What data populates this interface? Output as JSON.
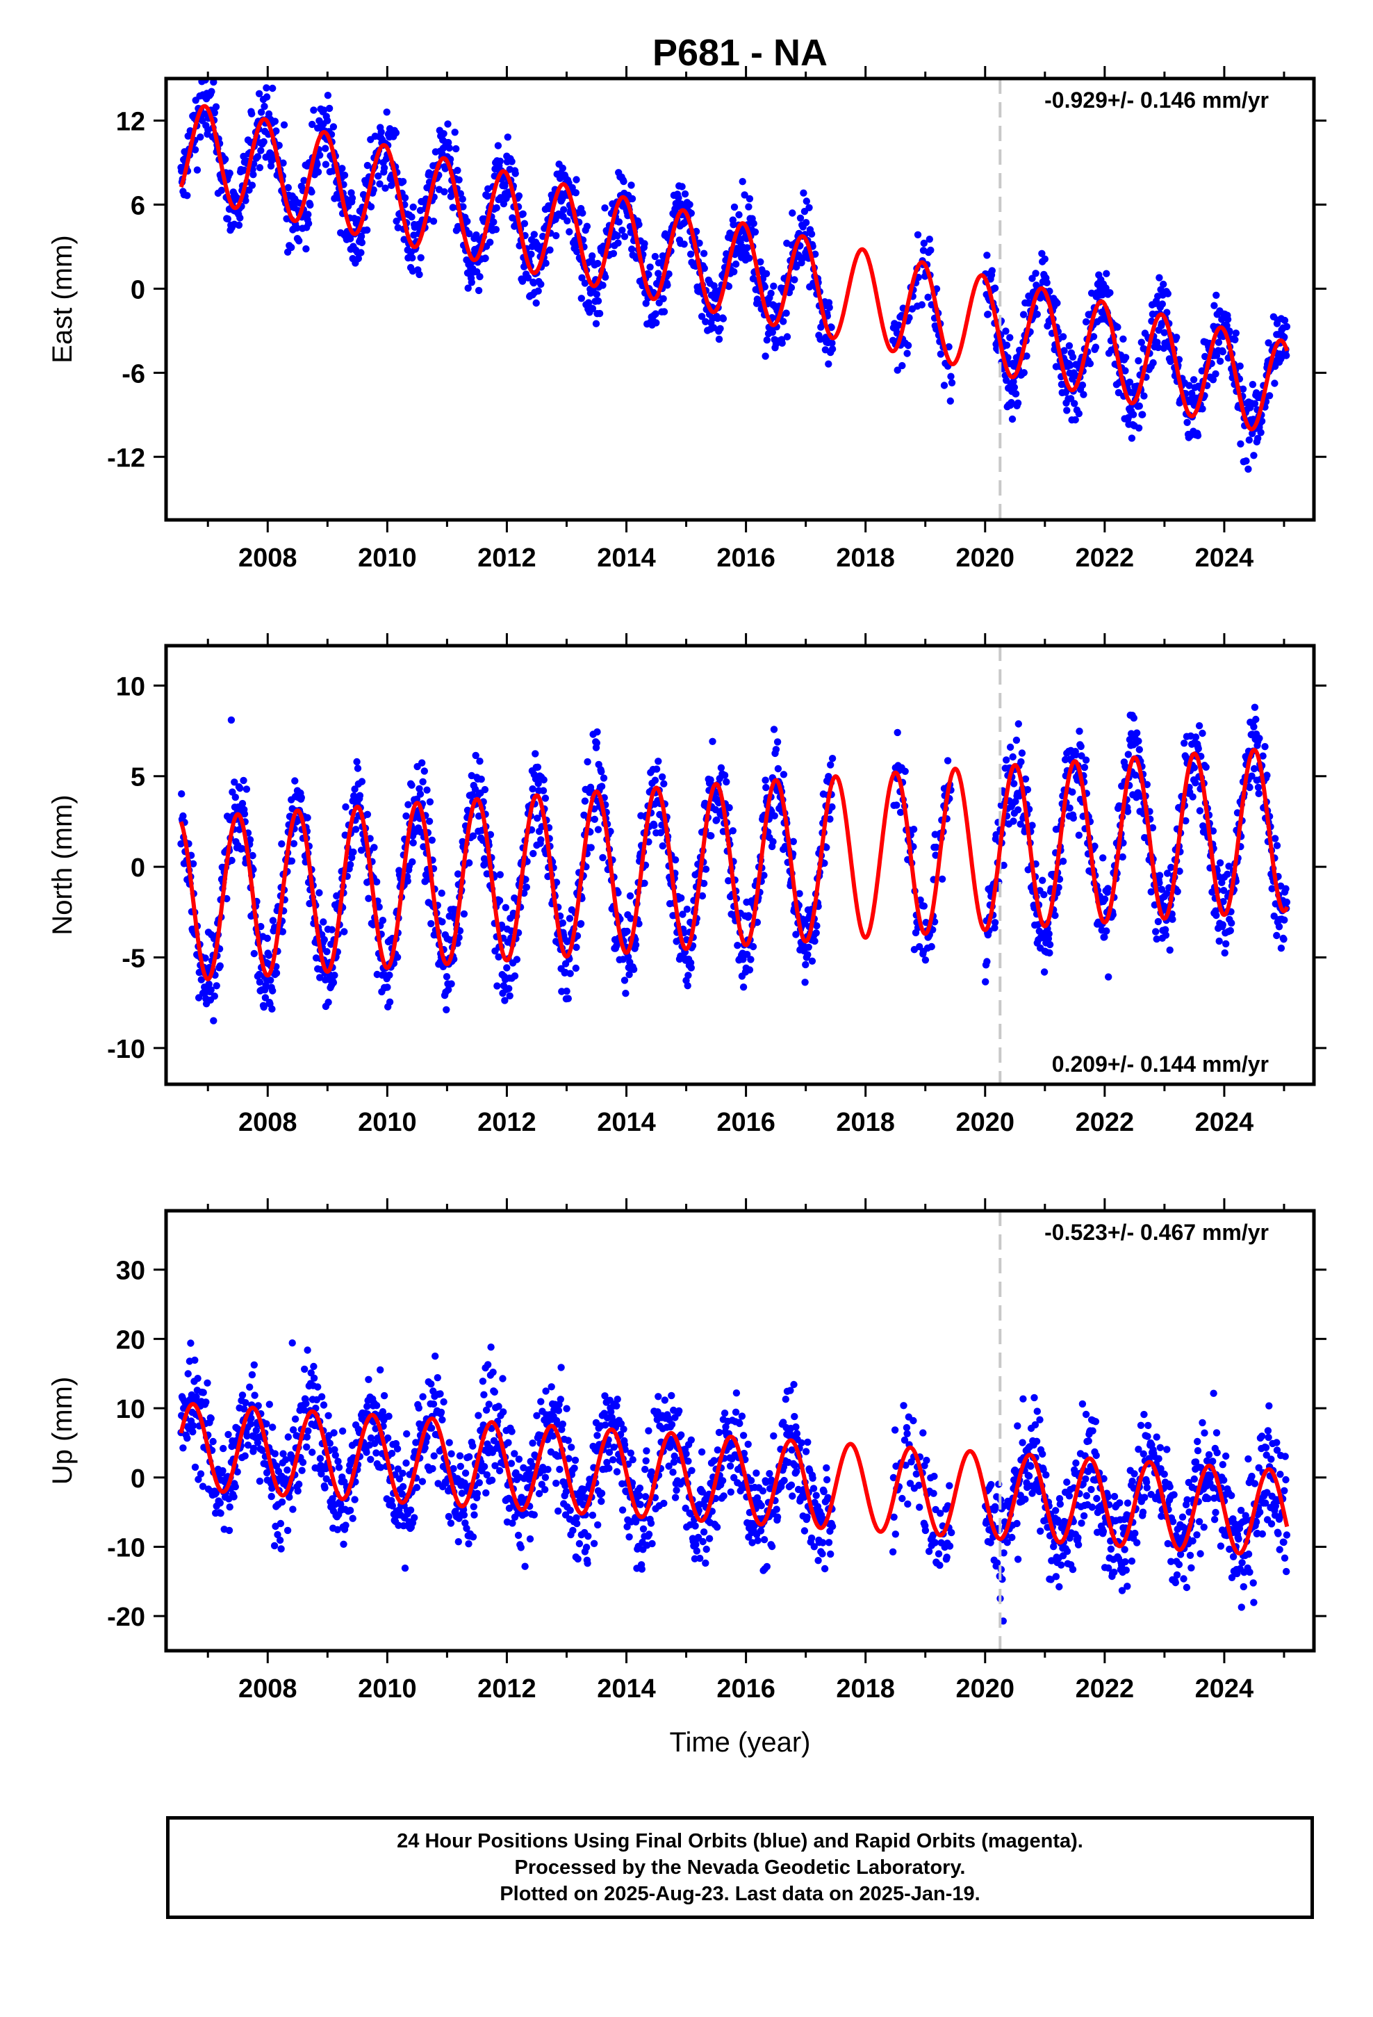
{
  "title": "P681 - NA",
  "colors": {
    "final_orbits": "#0000ff",
    "model_fit": "#ff0000",
    "event_line": "#c8c8c8"
  },
  "chart_data": [
    {
      "type": "scatter",
      "name": "East (mm)",
      "ylabel": "East (mm)",
      "xlabel": "",
      "xlim": [
        2006.3,
        2025.5
      ],
      "ylim": [
        -16.5,
        15
      ],
      "x_ticks": [
        2008,
        2010,
        2012,
        2014,
        2016,
        2018,
        2020,
        2022,
        2024
      ],
      "y_ticks": [
        12,
        6,
        0,
        -6,
        -12
      ],
      "rate_label": "-0.929+/- 0.146 mm/yr",
      "rate_label_position": "top-right",
      "event_line_x": 2020.25,
      "data_gap": [
        2017.45,
        2020.0
      ],
      "data_gap_sparse": [
        2018.45,
        2019.45
      ],
      "model_fit": {
        "offset": 10.0,
        "trend": -0.929,
        "seasonal_amplitude": 3.4,
        "seasonal_peak_year_fraction": 0.95,
        "start": 2006.55,
        "end": 2025.05
      },
      "scatter_spread": 1.4
    },
    {
      "type": "scatter",
      "name": "North (mm)",
      "ylabel": "North (mm)",
      "xlabel": "",
      "xlim": [
        2006.3,
        2025.5
      ],
      "ylim": [
        -12,
        12.2
      ],
      "x_ticks": [
        2008,
        2010,
        2012,
        2014,
        2016,
        2018,
        2020,
        2022,
        2024
      ],
      "y_ticks": [
        10,
        5,
        0,
        -5,
        -10
      ],
      "rate_label": "0.209+/- 0.144 mm/yr",
      "rate_label_position": "bottom-right",
      "event_line_x": 2020.25,
      "data_gap": [
        2017.45,
        2020.0
      ],
      "data_gap_sparse": [
        2018.45,
        2019.45
      ],
      "model_fit": {
        "offset": -1.8,
        "trend": 0.209,
        "seasonal_amplitude": 4.5,
        "seasonal_peak_year_fraction": 0.5,
        "start": 2006.55,
        "end": 2025.05
      },
      "scatter_spread": 1.3
    },
    {
      "type": "scatter",
      "name": "Up (mm)",
      "ylabel": "Up (mm)",
      "xlabel": "Time (year)",
      "xlim": [
        2006.3,
        2025.5
      ],
      "ylim": [
        -25,
        38.5
      ],
      "x_ticks": [
        2008,
        2010,
        2012,
        2014,
        2016,
        2018,
        2020,
        2022,
        2024
      ],
      "y_ticks": [
        30,
        20,
        10,
        0,
        -10,
        -20
      ],
      "rate_label": "-0.523+/- 0.467 mm/yr",
      "rate_label_position": "top-right",
      "event_line_x": 2020.25,
      "data_gap": [
        2017.45,
        2020.0
      ],
      "data_gap_sparse": [
        2018.45,
        2019.45
      ],
      "model_fit": {
        "offset": 4.5,
        "trend": -0.523,
        "seasonal_amplitude": 6.2,
        "seasonal_peak_year_fraction": 0.75,
        "start": 2006.55,
        "end": 2025.05
      },
      "scatter_spread": 4.0
    }
  ],
  "footer": {
    "line1": "24 Hour Positions Using Final Orbits (blue) and Rapid Orbits (magenta).",
    "line2": "Processed by the Nevada Geodetic Laboratory.",
    "line3": "Plotted on 2025-Aug-23. Last data on 2025-Jan-19."
  }
}
